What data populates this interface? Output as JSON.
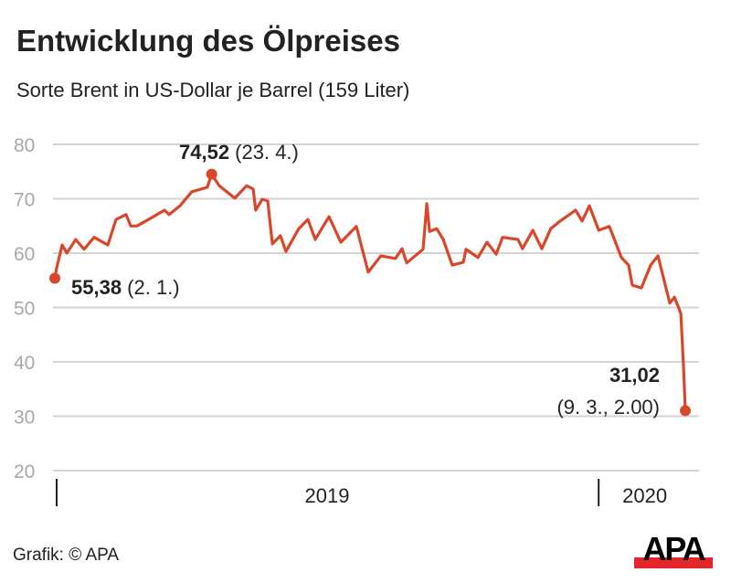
{
  "chart_data": {
    "type": "line",
    "title": "Entwicklung des Ölpreises",
    "subtitle": "Sorte Brent in US-Dollar je Barrel (159 Liter)",
    "xlabel": "",
    "ylabel": "",
    "ylim": [
      20,
      80
    ],
    "yticks": [
      "20",
      "30",
      "40",
      "50",
      "60",
      "70",
      "80"
    ],
    "xlim_days": [
      0,
      422
    ],
    "xticks": [
      {
        "day": 0,
        "label": ""
      },
      {
        "day": 364,
        "label": "2020"
      }
    ],
    "year_label": "2019",
    "grid": true,
    "line_color": "#d9472b",
    "series": [
      {
        "name": "Brent",
        "points": [
          [
            0,
            55.38
          ],
          [
            1.2,
            57.3
          ],
          [
            4.9,
            61.5
          ],
          [
            8,
            60.0
          ],
          [
            14,
            62.5
          ],
          [
            19.6,
            60.7
          ],
          [
            26.3,
            62.9
          ],
          [
            35.5,
            61.5
          ],
          [
            41,
            66.2
          ],
          [
            47.7,
            67.1
          ],
          [
            50.8,
            65.0
          ],
          [
            55,
            65.0
          ],
          [
            65.4,
            66.6
          ],
          [
            73.4,
            67.9
          ],
          [
            76.5,
            67.1
          ],
          [
            83.8,
            68.7
          ],
          [
            91.7,
            71.3
          ],
          [
            102,
            72.1
          ],
          [
            105,
            74.52
          ],
          [
            110,
            72.4
          ],
          [
            120.5,
            70.1
          ],
          [
            128.4,
            72.4
          ],
          [
            132.7,
            71.8
          ],
          [
            134.5,
            67.9
          ],
          [
            138.8,
            69.9
          ],
          [
            142.5,
            69.6
          ],
          [
            145.6,
            61.7
          ],
          [
            151,
            63.2
          ],
          [
            154.7,
            60.3
          ],
          [
            163.3,
            64.5
          ],
          [
            169.4,
            66.2
          ],
          [
            174.3,
            62.5
          ],
          [
            183.5,
            66.7
          ],
          [
            191.4,
            62.0
          ],
          [
            201.8,
            64.9
          ],
          [
            209.8,
            56.5
          ],
          [
            218.3,
            59.5
          ],
          [
            228,
            59.0
          ],
          [
            232.4,
            60.8
          ],
          [
            235.5,
            58.2
          ],
          [
            246.5,
            60.7
          ],
          [
            249,
            69.1
          ],
          [
            250.8,
            64.0
          ],
          [
            255.6,
            64.5
          ],
          [
            260,
            62.5
          ],
          [
            266,
            57.8
          ],
          [
            273.4,
            58.3
          ],
          [
            275.2,
            60.7
          ],
          [
            283.2,
            59.2
          ],
          [
            289.3,
            62.0
          ],
          [
            295.4,
            59.8
          ],
          [
            299.7,
            62.9
          ],
          [
            310,
            62.5
          ],
          [
            313,
            60.8
          ],
          [
            319.9,
            64.2
          ],
          [
            326,
            60.8
          ],
          [
            332,
            64.5
          ],
          [
            338.2,
            65.9
          ],
          [
            348.6,
            67.9
          ],
          [
            352.9,
            65.9
          ],
          [
            357.8,
            68.7
          ],
          [
            364,
            64.2
          ],
          [
            371.2,
            64.9
          ],
          [
            379.2,
            59.2
          ],
          [
            384,
            57.8
          ],
          [
            386.5,
            54.1
          ],
          [
            392.6,
            53.6
          ],
          [
            398.8,
            57.8
          ],
          [
            403.7,
            59.5
          ],
          [
            411.6,
            50.8
          ],
          [
            414.7,
            51.9
          ],
          [
            419,
            48.9
          ],
          [
            420.8,
            39.3
          ],
          [
            422,
            31.02
          ]
        ]
      }
    ],
    "annotations": [
      {
        "name": "start",
        "day": 0,
        "value": 55.38,
        "value_label": "55,38",
        "date_label": "(2. 1.)"
      },
      {
        "name": "peak",
        "day": 105,
        "value": 74.52,
        "value_label": "74,52",
        "date_label": "(23. 4.)"
      },
      {
        "name": "end",
        "day": 422,
        "value": 31.02,
        "value_label": "31,02",
        "date_label": "(9. 3., 2.00)"
      }
    ]
  },
  "footer": {
    "source": "Grafik: © APA",
    "logo_text": "APA"
  }
}
